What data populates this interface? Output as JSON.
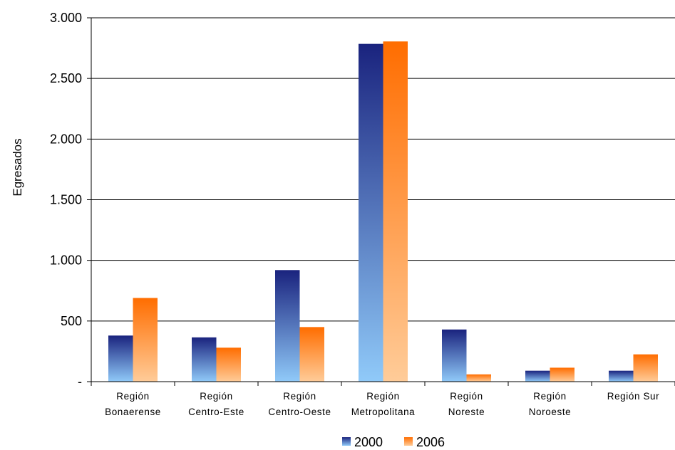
{
  "chart_data": {
    "type": "bar",
    "title": "",
    "xlabel": "",
    "ylabel": "Egresados",
    "ylim": [
      0,
      3000
    ],
    "yticks": [
      0,
      500,
      1000,
      1500,
      2000,
      2500,
      3000
    ],
    "ytick_labels": [
      "-",
      "500",
      "1.000",
      "1.500",
      "2.000",
      "2.500",
      "3.000"
    ],
    "grid": true,
    "legend_position": "bottom",
    "categories": [
      [
        "Región",
        "Bonaerense"
      ],
      [
        "Región",
        "Centro-Este"
      ],
      [
        "Región",
        "Centro-Oeste"
      ],
      [
        "Región",
        "Metropolitana"
      ],
      [
        "Región",
        "Noreste"
      ],
      [
        "Región",
        "Noroeste"
      ],
      [
        "Región Sur"
      ]
    ],
    "series": [
      {
        "name": "2000",
        "values": [
          380,
          365,
          920,
          2785,
          430,
          90,
          90
        ],
        "color_top": "#1a237e",
        "color_bottom": "#90caf9"
      },
      {
        "name": "2006",
        "values": [
          690,
          280,
          450,
          2805,
          60,
          115,
          225
        ],
        "color_top": "#ff6d00",
        "color_bottom": "#ffcc99"
      }
    ]
  }
}
